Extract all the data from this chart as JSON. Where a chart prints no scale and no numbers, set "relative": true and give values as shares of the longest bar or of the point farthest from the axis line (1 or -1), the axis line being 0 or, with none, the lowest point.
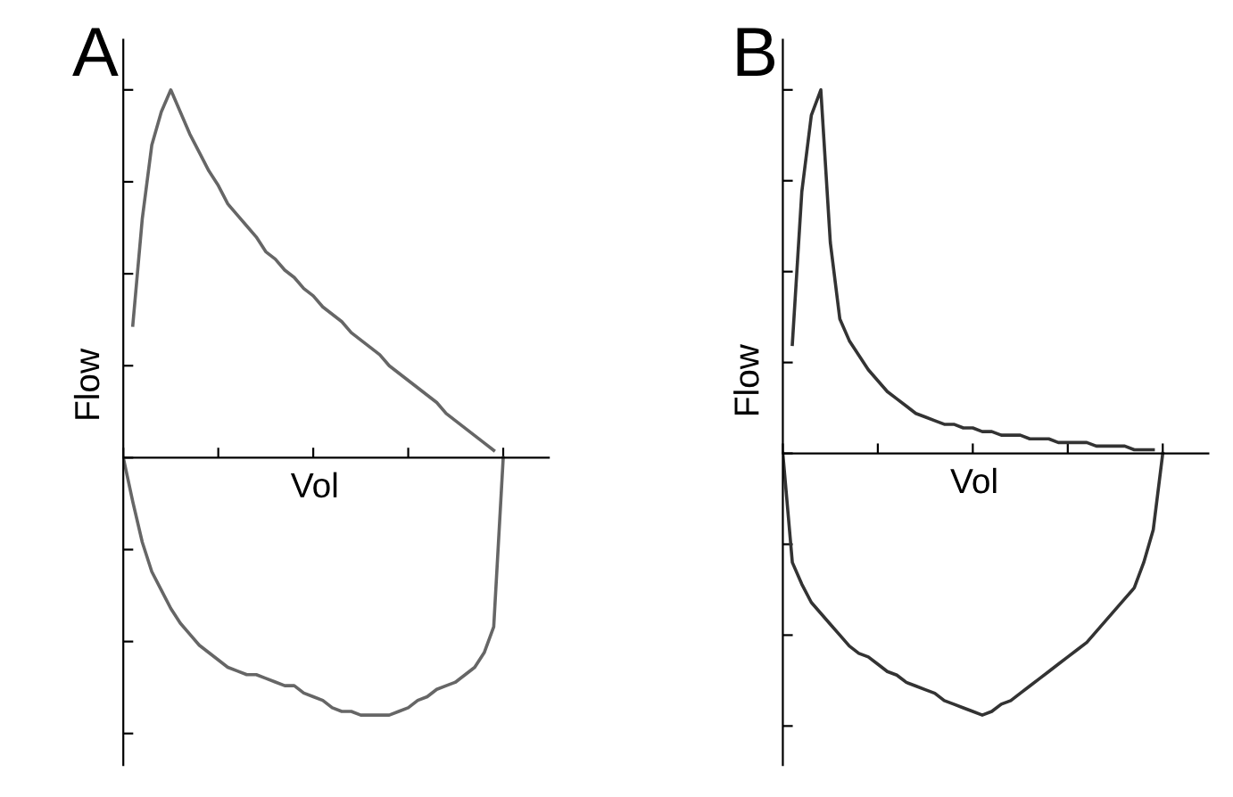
{
  "chart_data": [
    {
      "type": "line",
      "title": "A",
      "xlabel": "Vol",
      "ylabel": "Flow",
      "relative": true,
      "tick_labels": false,
      "grid": false,
      "categories": [
        null,
        null,
        null,
        null,
        null,
        null,
        null,
        null,
        null,
        null,
        null,
        null,
        null,
        null,
        null,
        null,
        null,
        null,
        null,
        null,
        null,
        null,
        null,
        null,
        null,
        null,
        null,
        null,
        null,
        null,
        null,
        null,
        null,
        null,
        null,
        null,
        null,
        null,
        null,
        null,
        null
      ],
      "series": [
        {
          "color": "#666666",
          "values": [
            null,
            0.36,
            0.65,
            0.85,
            0.94,
            1,
            0.94,
            0.88,
            0.83,
            0.78,
            0.74,
            0.69,
            0.66,
            0.63,
            0.6,
            0.56,
            0.54,
            0.51,
            0.49,
            0.46,
            0.44,
            0.41,
            0.39,
            0.37,
            0.34,
            0.32,
            0.3,
            0.28,
            0.25,
            0.23,
            0.21,
            0.19,
            0.17,
            0.15,
            0.12,
            0.1,
            0.08,
            0.06,
            0.04,
            0.02,
            null
          ]
        },
        {
          "color": "#666666",
          "values": [
            0,
            -0.12,
            -0.23,
            -0.31,
            -0.36,
            -0.41,
            -0.45,
            -0.48,
            -0.51,
            -0.53,
            -0.55,
            -0.57,
            -0.58,
            -0.59,
            -0.59,
            -0.6,
            -0.61,
            -0.62,
            -0.62,
            -0.64,
            -0.65,
            -0.66,
            -0.68,
            -0.69,
            -0.69,
            -0.7,
            -0.7,
            -0.7,
            -0.7,
            -0.69,
            -0.68,
            -0.66,
            -0.65,
            -0.63,
            -0.62,
            -0.61,
            -0.59,
            -0.57,
            -0.53,
            -0.46,
            0
          ]
        }
      ]
    },
    {
      "type": "line",
      "title": "B",
      "xlabel": "Vol",
      "ylabel": "Flow",
      "relative": true,
      "tick_labels": false,
      "grid": false,
      "categories": [
        null,
        null,
        null,
        null,
        null,
        null,
        null,
        null,
        null,
        null,
        null,
        null,
        null,
        null,
        null,
        null,
        null,
        null,
        null,
        null,
        null,
        null,
        null,
        null,
        null,
        null,
        null,
        null,
        null,
        null,
        null,
        null,
        null,
        null,
        null,
        null,
        null,
        null,
        null,
        null,
        null
      ],
      "series": [
        {
          "color": "#333333",
          "values": [
            null,
            0.3,
            0.72,
            0.93,
            1,
            0.58,
            0.37,
            0.31,
            0.27,
            0.23,
            0.2,
            0.17,
            0.15,
            0.13,
            0.11,
            0.1,
            0.09,
            0.08,
            0.08,
            0.07,
            0.07,
            0.06,
            0.06,
            0.05,
            0.05,
            0.05,
            0.04,
            0.04,
            0.04,
            0.03,
            0.03,
            0.03,
            0.03,
            0.02,
            0.02,
            0.02,
            0.02,
            0.01,
            0.01,
            0.01,
            null
          ]
        },
        {
          "color": "#333333",
          "values": [
            0,
            -0.3,
            -0.36,
            -0.41,
            -0.44,
            -0.47,
            -0.5,
            -0.53,
            -0.55,
            -0.56,
            -0.58,
            -0.6,
            -0.61,
            -0.63,
            -0.64,
            -0.65,
            -0.66,
            -0.68,
            -0.69,
            -0.7,
            -0.71,
            -0.72,
            -0.71,
            -0.69,
            -0.68,
            -0.66,
            -0.64,
            -0.62,
            -0.6,
            -0.58,
            -0.56,
            -0.54,
            -0.52,
            -0.49,
            -0.46,
            -0.43,
            -0.4,
            -0.37,
            -0.3,
            -0.21,
            0
          ]
        }
      ]
    }
  ]
}
